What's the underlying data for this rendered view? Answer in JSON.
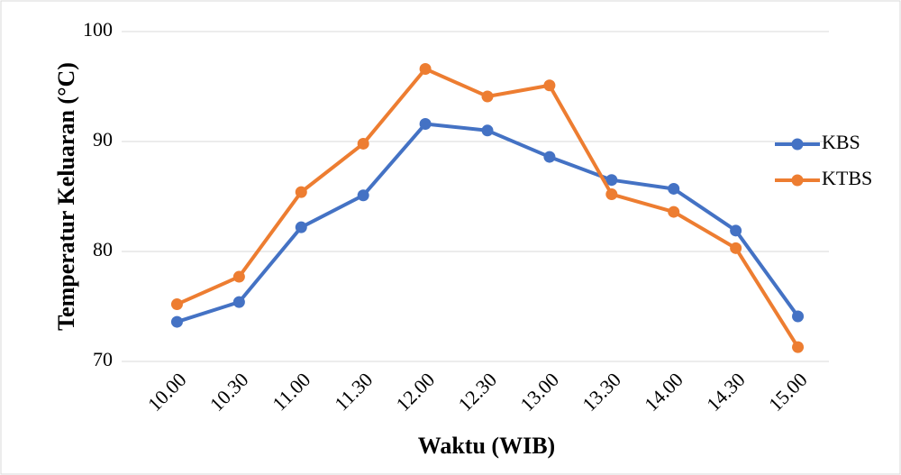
{
  "chart_data": {
    "type": "line",
    "xlabel": "Waktu (WIB)",
    "ylabel": "Temperatur Keluaran (°C)",
    "categories": [
      "10.00",
      "10.30",
      "11.00",
      "11.30",
      "12.00",
      "12.30",
      "13.00",
      "13.30",
      "14.00",
      "14.30",
      "15.00"
    ],
    "series": [
      {
        "name": "KBS",
        "color": "#4472c4",
        "values": [
          73.6,
          75.4,
          82.2,
          85.1,
          91.6,
          91.0,
          88.6,
          86.5,
          85.7,
          81.9,
          74.1
        ]
      },
      {
        "name": "KTBS",
        "color": "#ed7d31",
        "values": [
          75.2,
          77.7,
          85.4,
          89.8,
          96.6,
          94.1,
          95.1,
          85.2,
          83.6,
          80.3,
          71.3
        ]
      }
    ],
    "ylim": [
      70,
      100
    ],
    "yticks": [
      70,
      80,
      90,
      100
    ],
    "grid": true,
    "legend": "right"
  }
}
